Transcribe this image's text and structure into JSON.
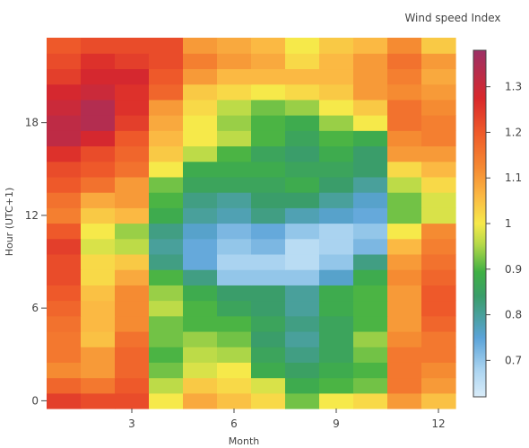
{
  "chart_data": {
    "type": "heatmap",
    "title": "",
    "xlabel": "Month",
    "ylabel": "Hour (UTC+1)",
    "x": [
      1,
      2,
      3,
      4,
      5,
      6,
      7,
      8,
      9,
      10,
      11,
      12
    ],
    "y": [
      0,
      1,
      2,
      3,
      4,
      5,
      6,
      7,
      8,
      9,
      10,
      11,
      12,
      13,
      14,
      15,
      16,
      17,
      18,
      19,
      20,
      21,
      22,
      23
    ],
    "x_ticks": [
      3,
      6,
      9,
      12
    ],
    "y_ticks": [
      0,
      6,
      12,
      18
    ],
    "colorbar": {
      "title": "Wind speed Index",
      "range": [
        0.62,
        1.38
      ],
      "ticks": [
        0.7,
        0.8,
        0.9,
        1,
        1.1,
        1.2,
        1.3
      ]
    },
    "colorscale": [
      [
        0.0,
        "#d9ecf9"
      ],
      [
        0.08,
        "#a9d3f0"
      ],
      [
        0.17,
        "#5ba3d8"
      ],
      [
        0.29,
        "#3a9d6a"
      ],
      [
        0.36,
        "#3fb044"
      ],
      [
        0.44,
        "#b5d948"
      ],
      [
        0.5,
        "#f6e94a"
      ],
      [
        0.58,
        "#fbb843"
      ],
      [
        0.66,
        "#f58a32"
      ],
      [
        0.76,
        "#ef5b2a"
      ],
      [
        0.86,
        "#d9282b"
      ],
      [
        1.0,
        "#9c3066"
      ]
    ],
    "z": [
      [
        1.24,
        1.22,
        1.22,
        1.0,
        1.08,
        1.05,
        1.02,
        0.92,
        1.0,
        1.02,
        1.1,
        1.05
      ],
      [
        1.18,
        1.15,
        1.2,
        0.96,
        1.04,
        1.02,
        0.98,
        0.88,
        0.9,
        0.92,
        1.15,
        1.1
      ],
      [
        1.12,
        1.1,
        1.18,
        0.92,
        0.98,
        1.0,
        0.88,
        0.85,
        0.88,
        0.9,
        1.15,
        1.12
      ],
      [
        1.15,
        1.1,
        1.18,
        0.9,
        0.96,
        0.95,
        0.86,
        0.82,
        0.86,
        0.92,
        1.15,
        1.15
      ],
      [
        1.15,
        1.05,
        1.16,
        0.92,
        0.94,
        0.92,
        0.84,
        0.8,
        0.86,
        0.94,
        1.12,
        1.15
      ],
      [
        1.16,
        1.06,
        1.12,
        0.92,
        0.9,
        0.9,
        0.86,
        0.82,
        0.86,
        0.9,
        1.1,
        1.18
      ],
      [
        1.18,
        1.06,
        1.12,
        0.96,
        0.9,
        0.86,
        0.84,
        0.8,
        0.88,
        0.9,
        1.1,
        1.2
      ],
      [
        1.2,
        1.05,
        1.12,
        0.94,
        0.88,
        0.84,
        0.84,
        0.8,
        0.88,
        0.9,
        1.1,
        1.2
      ],
      [
        1.22,
        1.02,
        1.08,
        0.9,
        0.82,
        0.7,
        0.7,
        0.7,
        0.76,
        0.88,
        1.12,
        1.18
      ],
      [
        1.22,
        1.02,
        1.04,
        0.82,
        0.74,
        0.68,
        0.68,
        0.66,
        0.7,
        0.82,
        1.1,
        1.16
      ],
      [
        1.24,
        0.98,
        0.96,
        0.8,
        0.74,
        0.7,
        0.72,
        0.66,
        0.68,
        0.72,
        1.06,
        1.14
      ],
      [
        1.2,
        1.0,
        0.94,
        0.82,
        0.76,
        0.72,
        0.74,
        0.7,
        0.68,
        0.7,
        1.0,
        1.12
      ],
      [
        1.14,
        1.04,
        1.06,
        0.88,
        0.8,
        0.78,
        0.82,
        0.78,
        0.76,
        0.74,
        0.92,
        0.98
      ],
      [
        1.16,
        1.08,
        1.1,
        0.9,
        0.82,
        0.8,
        0.84,
        0.84,
        0.8,
        0.76,
        0.92,
        0.98
      ],
      [
        1.2,
        1.16,
        1.1,
        0.92,
        0.86,
        0.86,
        0.86,
        0.88,
        0.84,
        0.8,
        0.96,
        1.02
      ],
      [
        1.22,
        1.2,
        1.16,
        1.0,
        0.88,
        0.88,
        0.88,
        0.86,
        0.86,
        0.84,
        1.02,
        1.06
      ],
      [
        1.26,
        1.22,
        1.18,
        1.04,
        0.96,
        0.9,
        0.86,
        0.84,
        0.88,
        0.84,
        1.1,
        1.1
      ],
      [
        1.32,
        1.28,
        1.2,
        1.06,
        1.0,
        0.96,
        0.9,
        0.86,
        0.9,
        0.88,
        1.12,
        1.14
      ],
      [
        1.32,
        1.34,
        1.24,
        1.08,
        1.0,
        0.94,
        0.9,
        0.88,
        0.94,
        1.0,
        1.16,
        1.14
      ],
      [
        1.3,
        1.34,
        1.26,
        1.1,
        1.02,
        0.96,
        0.92,
        0.94,
        1.0,
        1.04,
        1.16,
        1.12
      ],
      [
        1.28,
        1.3,
        1.26,
        1.18,
        1.04,
        1.02,
        1.0,
        1.02,
        1.04,
        1.1,
        1.12,
        1.1
      ],
      [
        1.24,
        1.28,
        1.28,
        1.2,
        1.1,
        1.06,
        1.06,
        1.06,
        1.06,
        1.1,
        1.14,
        1.08
      ],
      [
        1.22,
        1.26,
        1.24,
        1.22,
        1.14,
        1.1,
        1.08,
        1.02,
        1.06,
        1.1,
        1.16,
        1.1
      ],
      [
        1.2,
        1.22,
        1.22,
        1.22,
        1.1,
        1.08,
        1.06,
        1.0,
        1.04,
        1.06,
        1.12,
        1.04
      ]
    ]
  }
}
